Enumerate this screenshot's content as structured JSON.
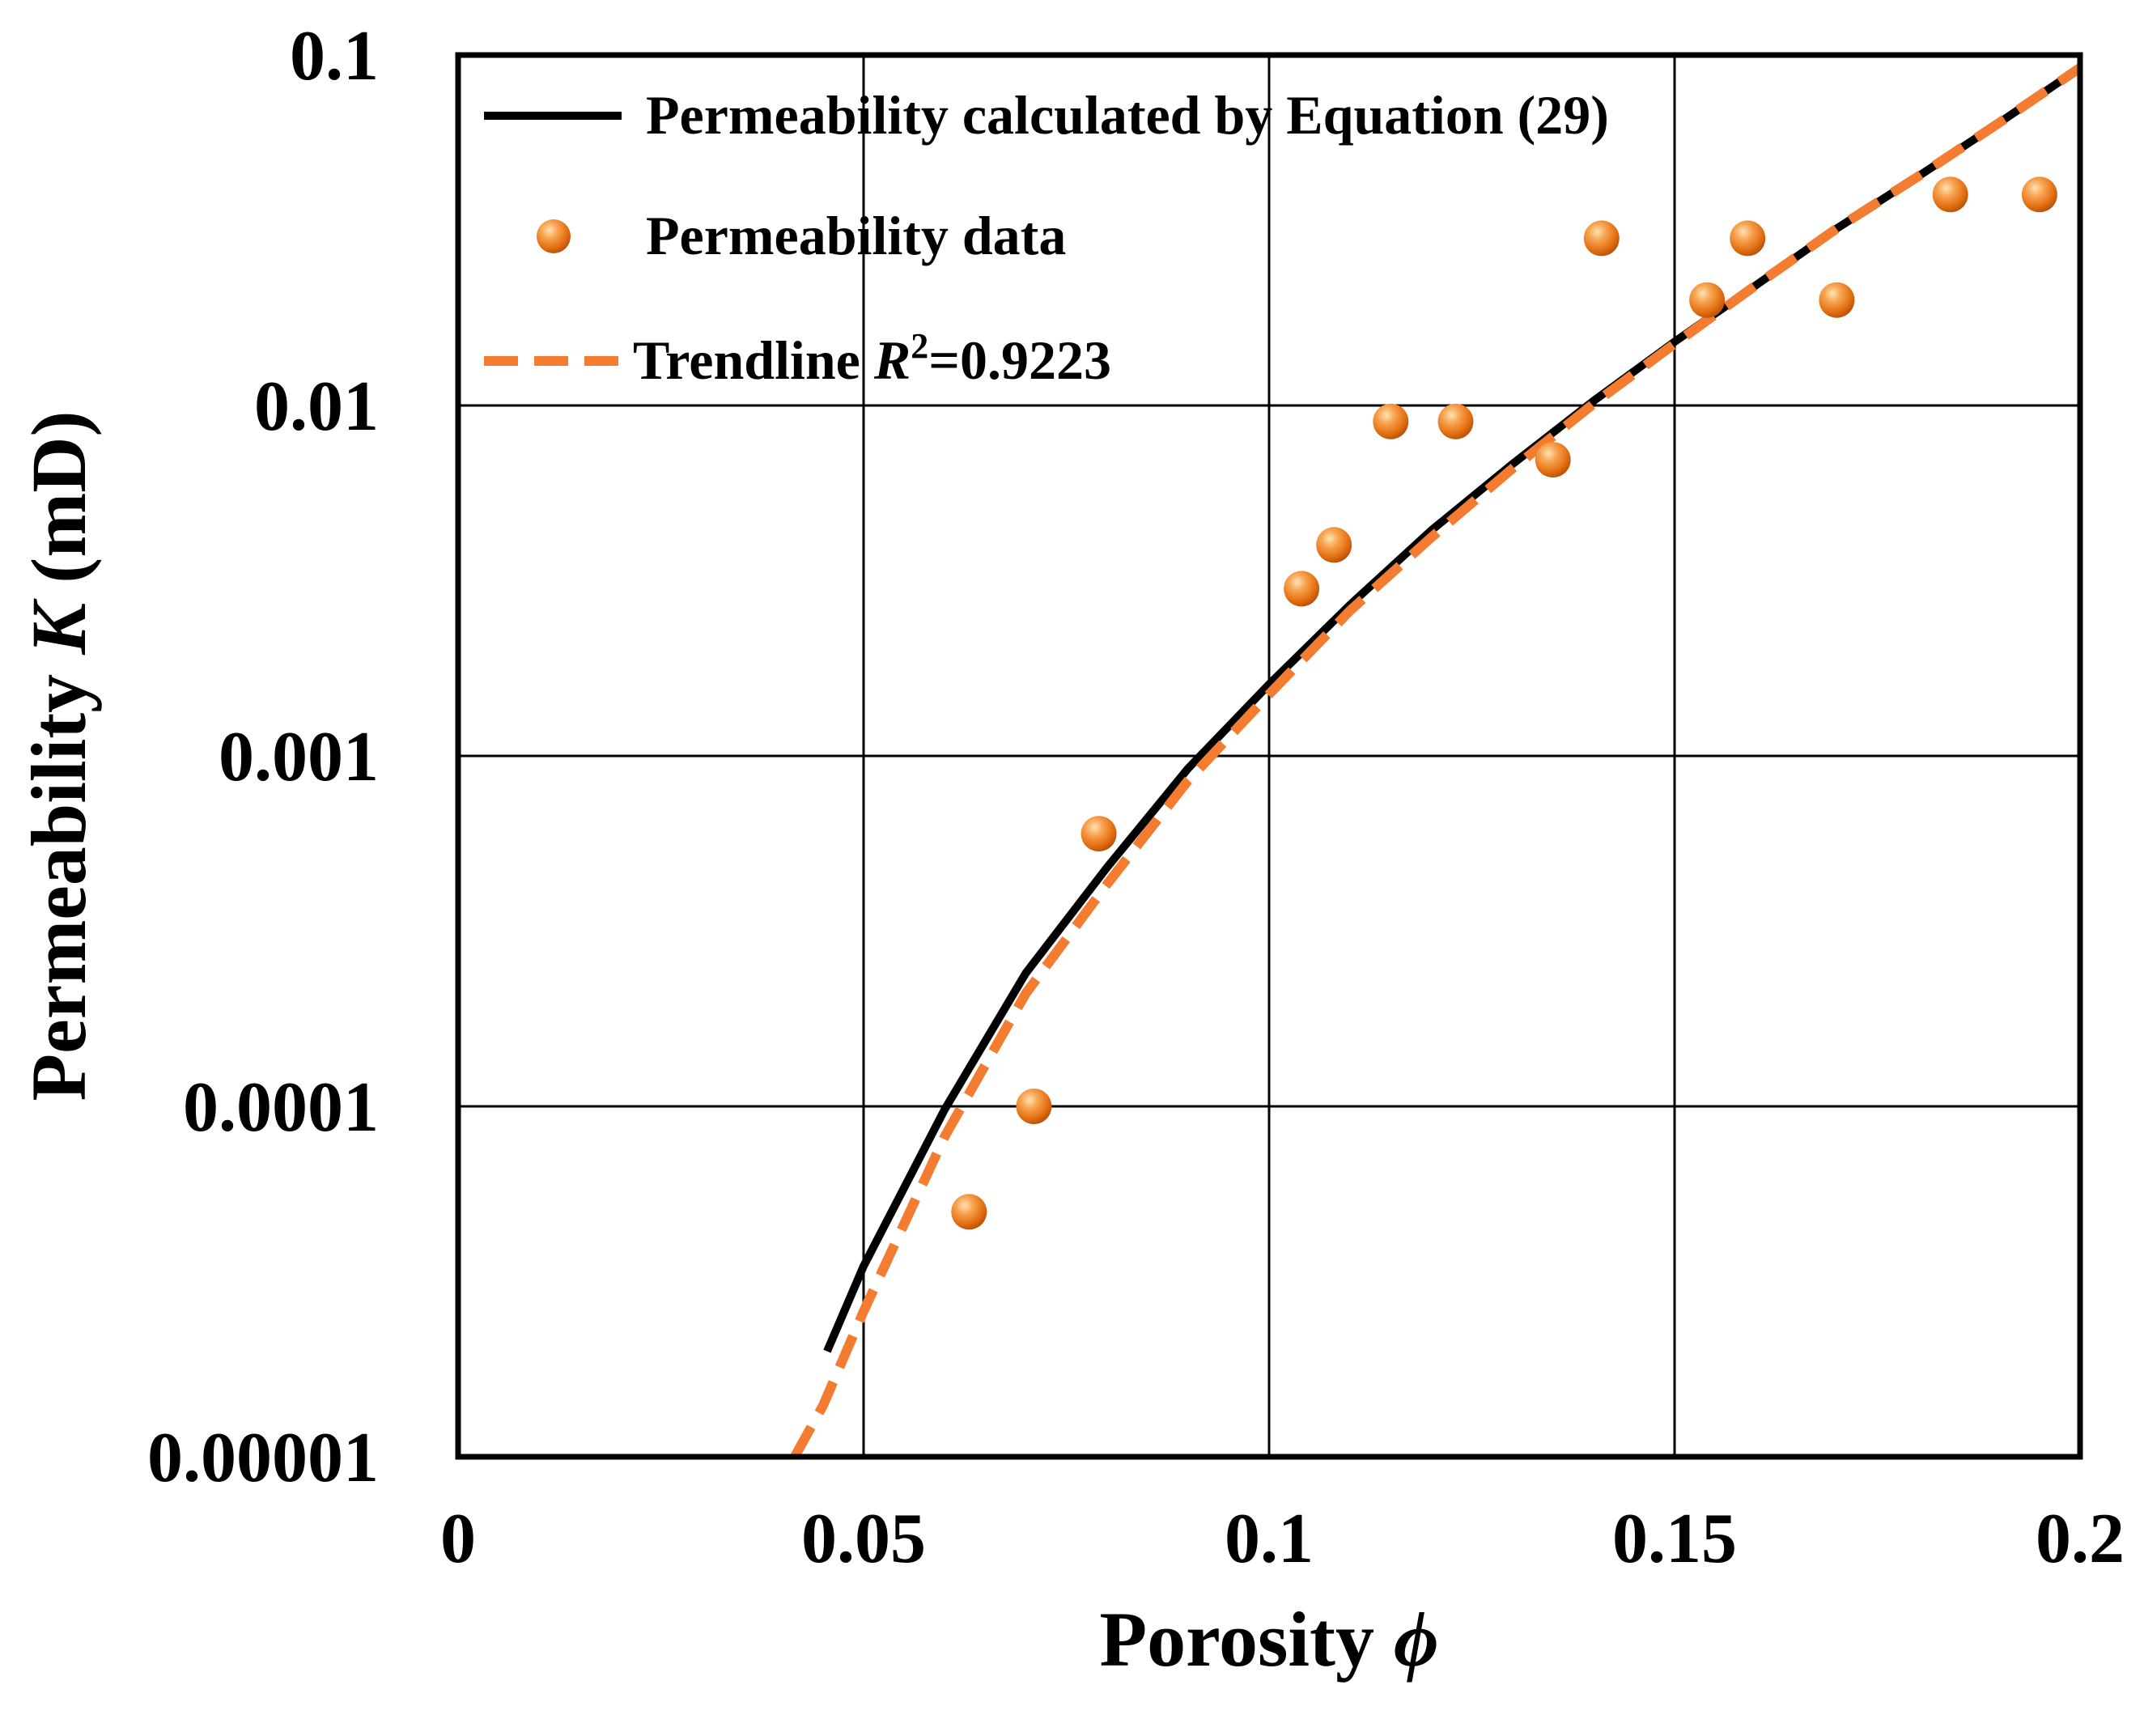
{
  "chart_data": {
    "type": "scatter",
    "xlabel": "Porosity ",
    "xlabel_symbol": "ϕ",
    "ylabel": "Permeability ",
    "ylabel_symbol": "K",
    "ylabel_unit": " (mD)",
    "xlim": [
      0,
      0.2
    ],
    "ylim": [
      1e-05,
      0.1
    ],
    "yscale": "log",
    "grid": true,
    "legend_position": "top-left",
    "x_ticks": [
      {
        "value": 0,
        "label": "0"
      },
      {
        "value": 0.05,
        "label": "0.05"
      },
      {
        "value": 0.1,
        "label": "0.1"
      },
      {
        "value": 0.15,
        "label": "0.15"
      },
      {
        "value": 0.2,
        "label": "0.2"
      }
    ],
    "y_ticks": [
      {
        "value": 0.1,
        "label": "0.1"
      },
      {
        "value": 0.01,
        "label": "0.01"
      },
      {
        "value": 0.001,
        "label": "0.001"
      },
      {
        "value": 0.0001,
        "label": "0.0001"
      },
      {
        "value": 1e-05,
        "label": "0.00001"
      }
    ],
    "series": [
      {
        "name": "Permeability calculated by Equation (29)",
        "kind": "line",
        "style": "solid",
        "color": "#000000",
        "x": [
          0.0455,
          0.05,
          0.06,
          0.07,
          0.08,
          0.09,
          0.1,
          0.11,
          0.12,
          0.13,
          0.14,
          0.15,
          0.16,
          0.17,
          0.18,
          0.19,
          0.2
        ],
        "y": [
          2e-05,
          3.5e-05,
          9.8e-05,
          0.00024,
          0.00048,
          0.00092,
          0.0016,
          0.0027,
          0.0044,
          0.0068,
          0.0103,
          0.0152,
          0.022,
          0.032,
          0.045,
          0.064,
          0.092
        ]
      },
      {
        "name": "Permeability data",
        "kind": "scatter",
        "color": "#f07b1c",
        "x": [
          0.063,
          0.071,
          0.079,
          0.104,
          0.108,
          0.115,
          0.123,
          0.135,
          0.141,
          0.154,
          0.159,
          0.17,
          0.184,
          0.195
        ],
        "y": [
          5e-05,
          0.0001,
          0.0006,
          0.003,
          0.004,
          0.009,
          0.009,
          0.007,
          0.03,
          0.02,
          0.03,
          0.02,
          0.04,
          0.04
        ]
      },
      {
        "name": "Trendline ",
        "name_symbol": "R",
        "name_sup": "2",
        "name_suffix": "=0.9223",
        "kind": "line",
        "style": "dashed",
        "color": "#f47c30",
        "x": [
          0.0415,
          0.045,
          0.05,
          0.06,
          0.07,
          0.08,
          0.09,
          0.1,
          0.11,
          0.12,
          0.13,
          0.14,
          0.15,
          0.16,
          0.17,
          0.18,
          0.19,
          0.2
        ],
        "y": [
          1e-05,
          1.4e-05,
          2.6e-05,
          8.2e-05,
          0.00021,
          0.00043,
          0.00085,
          0.0015,
          0.0026,
          0.0042,
          0.0066,
          0.0101,
          0.015,
          0.022,
          0.032,
          0.045,
          0.064,
          0.092
        ]
      }
    ]
  }
}
